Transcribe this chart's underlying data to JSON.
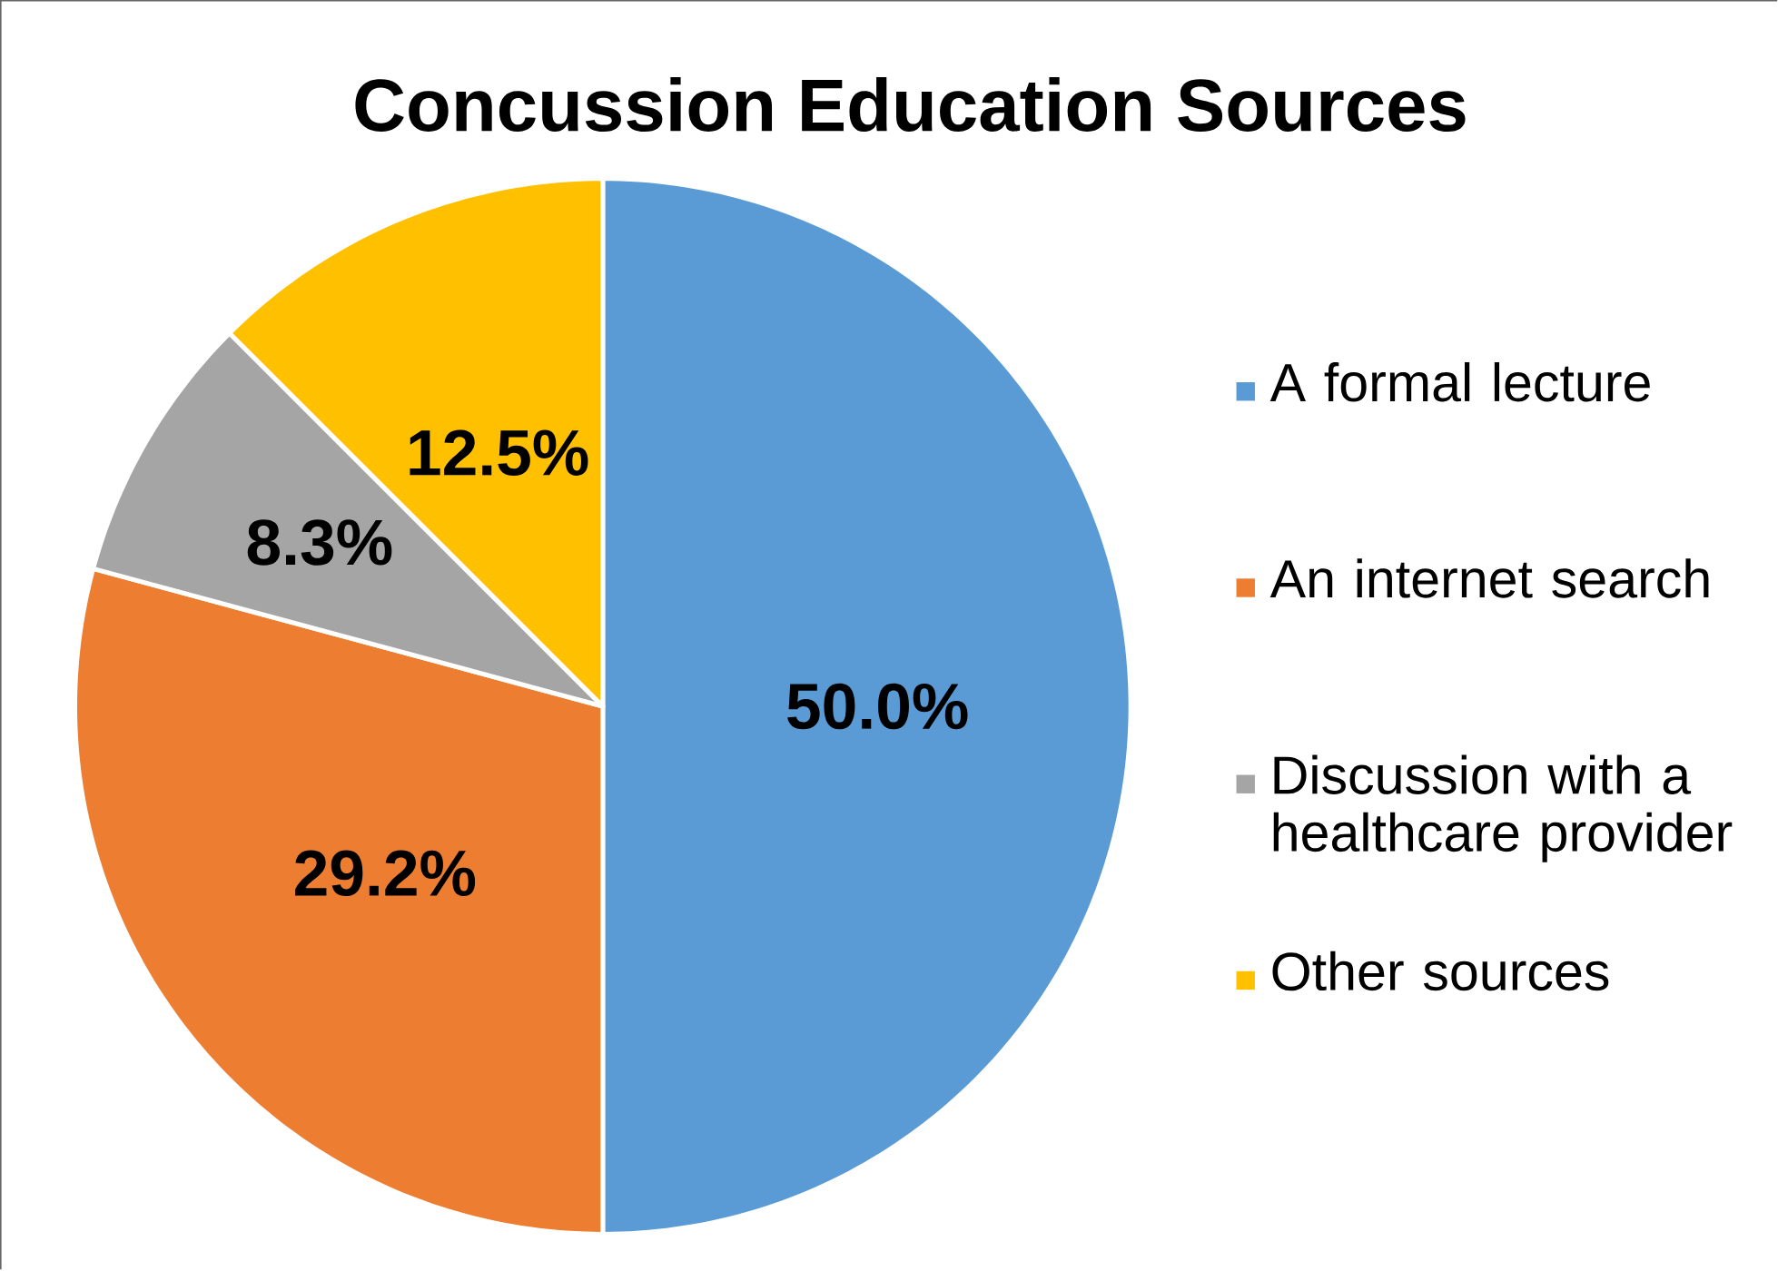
{
  "chart_data": {
    "type": "pie",
    "title": "Concussion Education Sources",
    "categories": [
      "A formal lecture",
      "An internet search",
      "Discussion with a healthcare provider",
      "Other sources"
    ],
    "values": [
      50.0,
      29.2,
      8.3,
      12.5
    ],
    "value_labels": [
      "50.0%",
      "29.2%",
      "8.3%",
      "12.5%"
    ],
    "colors": [
      "#5b9bd5",
      "#ed7d31",
      "#a5a5a5",
      "#ffc000"
    ],
    "legend": "right"
  }
}
